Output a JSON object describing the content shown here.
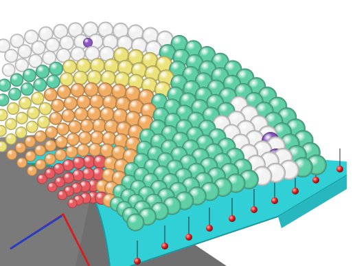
{
  "scene": {
    "subject": "sphere-packing-on-curved-fan-surface",
    "background_color": "#ffffff",
    "plate_color": "#6f6f6f",
    "frame_color": "#31d0d6",
    "axis_colors": {
      "x": "#d42020",
      "y": "#2040c8",
      "z": "#20a040"
    },
    "sphere_colors": {
      "white": "#f2f2f2",
      "green": "#5fd0a6",
      "yellow": "#ece27a",
      "orange": "#f2ad64",
      "red": "#e85a60",
      "purple": "#8a55c4"
    },
    "anchor_color": "#e02020"
  }
}
